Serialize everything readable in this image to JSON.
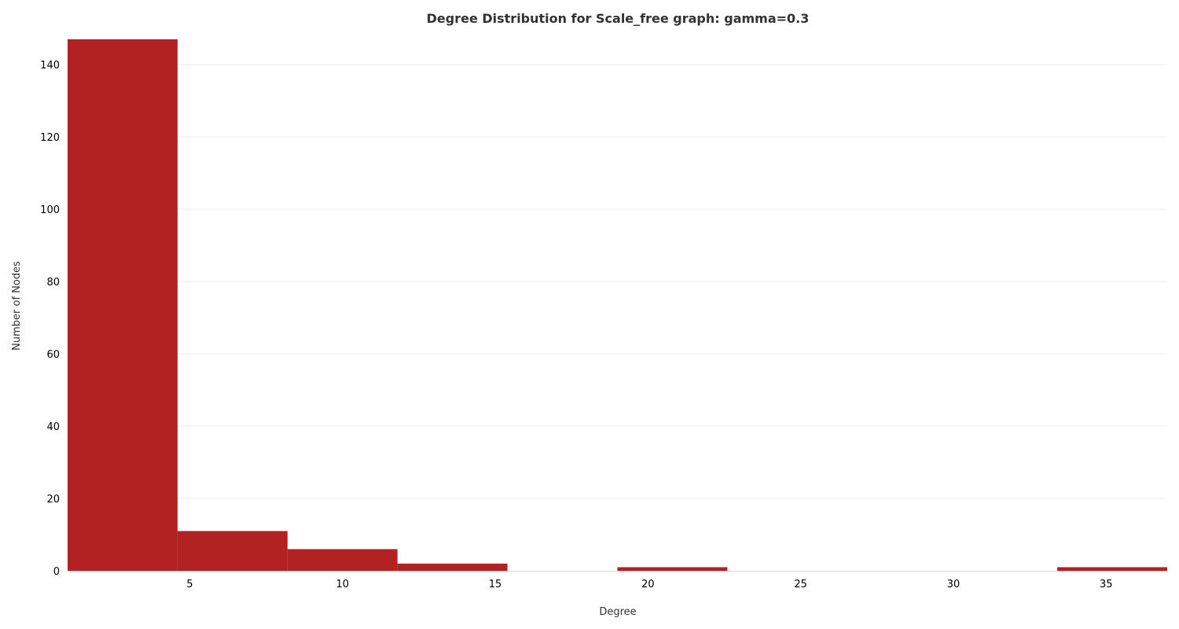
{
  "chart_data": {
    "type": "bar",
    "title": "Degree Distribution for Scale_free graph: gamma=0.3",
    "xlabel": "Degree",
    "ylabel": "Number of Nodes",
    "bin_edges": [
      1,
      4.6,
      8.2,
      11.8,
      15.4,
      19.0,
      22.6,
      26.2,
      29.8,
      33.4,
      37.0
    ],
    "values": [
      147,
      11,
      6,
      2,
      0,
      1,
      0,
      0,
      0,
      1
    ],
    "xlim": [
      1,
      37
    ],
    "ylim": [
      0,
      147
    ],
    "x_ticks": [
      5,
      10,
      15,
      20,
      25,
      30,
      35
    ],
    "y_ticks": [
      0,
      20,
      40,
      60,
      80,
      100,
      120,
      140
    ],
    "grid": true,
    "bar_color": "#b22222"
  }
}
